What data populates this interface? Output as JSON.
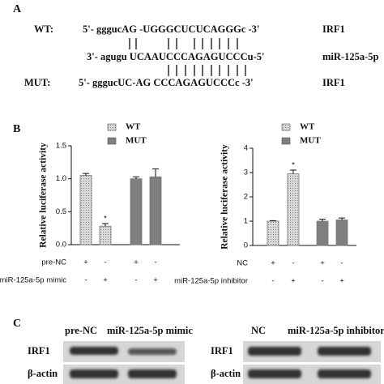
{
  "panel_a": {
    "label": "A",
    "rows": [
      {
        "name": "WT:",
        "sequence": "5'- gggucAG -UGGGCUCUCAGGGc -3'",
        "gene": "IRF1"
      },
      {
        "sequence": "3'- agugu UCAAUCCCAGAGUCCCu-5'",
        "gene": "miR-125a-5p"
      },
      {
        "name": "MUT:",
        "sequence": "5'- gggucUC-AG CCCAGAGUCCCc -3'",
        "gene": "IRF1"
      }
    ]
  },
  "panel_b_label": "B",
  "chart_data": [
    {
      "type": "bar",
      "y_label": "Relative luciferase activity",
      "categories": [
        null,
        null,
        null,
        null
      ],
      "series": [
        {
          "name": "WT",
          "color": "#d9d9d9",
          "pattern": "dots",
          "values": [
            1.05,
            0.28,
            null,
            null
          ],
          "errors": [
            0.03,
            0.04,
            null,
            null
          ],
          "significance": [
            null,
            "*",
            null,
            null
          ]
        },
        {
          "name": "MUT",
          "color": "#7f7f7f",
          "values": [
            null,
            null,
            1.0,
            1.03
          ],
          "errors": [
            null,
            null,
            0.03,
            0.12
          ]
        }
      ],
      "ylim": [
        0,
        1.5
      ],
      "yticks": [
        {
          "value": 0,
          "label": "0.0"
        },
        0.5,
        {
          "value": 1,
          "label": "1.0"
        },
        1.5
      ],
      "treatments": [
        {
          "label": "pre-NC",
          "signs": [
            "+",
            "-",
            "+",
            "-"
          ]
        },
        {
          "label": "miR-125a-5p mimic",
          "signs": [
            "-",
            "+",
            "-",
            "+"
          ]
        }
      ],
      "legend": "top"
    },
    {
      "type": "bar",
      "y_label": "Relative luciferase activity",
      "categories": [
        null,
        null,
        null,
        null
      ],
      "series": [
        {
          "name": "WT",
          "color": "#d9d9d9",
          "pattern": "dots",
          "values": [
            1.0,
            2.95,
            null,
            null
          ],
          "errors": [
            0.02,
            0.15,
            null,
            null
          ],
          "significance": [
            null,
            "*",
            null,
            null
          ]
        },
        {
          "name": "MUT",
          "color": "#7f7f7f",
          "values": [
            null,
            null,
            1.0,
            1.05
          ],
          "errors": [
            null,
            null,
            0.08,
            0.08
          ]
        }
      ],
      "ylim": [
        0,
        4
      ],
      "yticks": [
        0,
        1,
        2,
        3,
        4
      ],
      "treatments": [
        {
          "label": "NC",
          "signs": [
            "+",
            "-",
            "+",
            "-"
          ]
        },
        {
          "label": "miR-125a-5p inhibitor",
          "signs": [
            "-",
            "+",
            "-",
            "+"
          ]
        }
      ],
      "legend": "top"
    }
  ],
  "panel_c": {
    "label": "C",
    "blots": [
      {
        "lanes": [
          "pre-NC",
          "miR-125a-5p mimic"
        ],
        "rows": [
          "IRF1",
          "β-actin"
        ]
      },
      {
        "lanes": [
          "NC",
          "miR-125a-5p inhibitor"
        ],
        "rows": [
          "IRF1",
          "β-actin"
        ]
      }
    ]
  }
}
